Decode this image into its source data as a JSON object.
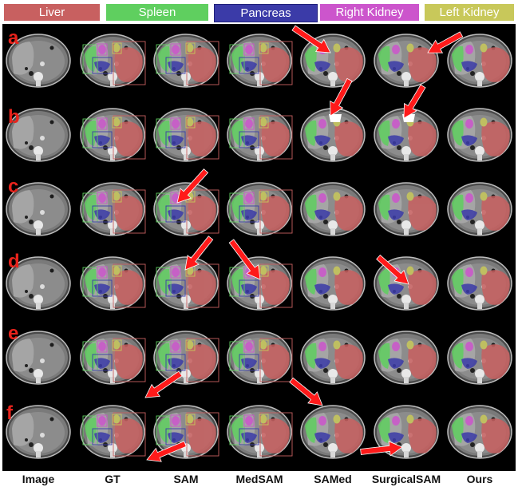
{
  "legend": [
    {
      "label": "Liver",
      "color": "#c86060"
    },
    {
      "label": "Spleen",
      "color": "#5fcf5f"
    },
    {
      "label": "Pancreas",
      "color": "#3b3ba8"
    },
    {
      "label": "Right Kidney",
      "color": "#cc55cc"
    },
    {
      "label": "Left Kidney",
      "color": "#c8c85a"
    }
  ],
  "rows": [
    "a",
    "b",
    "c",
    "d",
    "e",
    "f"
  ],
  "columns": [
    "Image",
    "GT",
    "SAM",
    "MedSAM",
    "SAMed",
    "SurgicalSAM",
    "Ours"
  ],
  "colors": {
    "liver": "#c86060",
    "spleen": "#5fcf5f",
    "pancreas": "#3b3ba8",
    "right_kidney": "#cc55cc",
    "left_kidney": "#c8c85a",
    "arrow": "#ff1a1a",
    "row_letter": "#e8231c"
  }
}
